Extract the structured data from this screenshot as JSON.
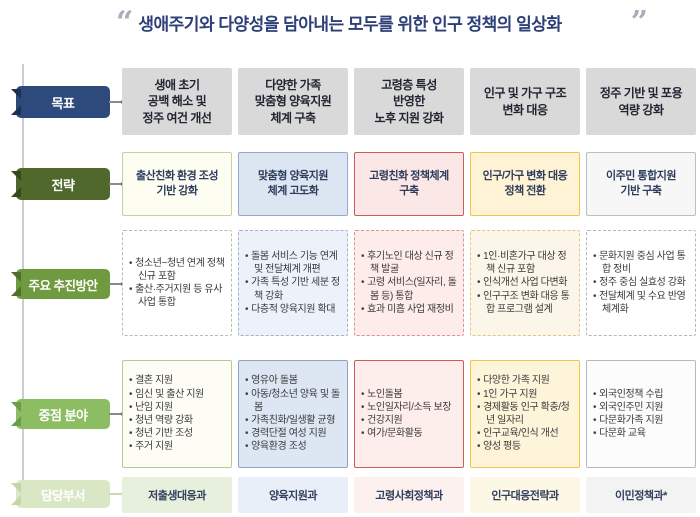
{
  "title": {
    "text": "생애주기와 다양성을 담아내는 모두를 위한 인구 정책의 일상화",
    "open_quote": "“",
    "close_quote": "”",
    "color": "#2d3f77"
  },
  "row_labels": [
    {
      "id": "goal",
      "label": "목표",
      "theme": {
        "bg": "#2e4a7d",
        "fold": "#1d3152"
      }
    },
    {
      "id": "strategy",
      "label": "전략",
      "theme": {
        "bg": "#50682c",
        "fold": "#36481d"
      }
    },
    {
      "id": "plans",
      "label": "주요 추진방안",
      "theme": {
        "bg": "#6f9a3f",
        "fold": "#4f7029"
      }
    },
    {
      "id": "focus",
      "label": "중점 분야",
      "theme": {
        "bg": "#8cbd63",
        "fold": "#6b9c46"
      }
    },
    {
      "id": "dept",
      "label": "담당부서",
      "theme": {
        "bg": "#d9e7c4",
        "fold": "#c2d6a6"
      }
    }
  ],
  "goal_theme": {
    "bg": "#d9d9d9"
  },
  "columns": [
    {
      "goal": "생애 초기\n공백 해소 및\n정주 여건 개선",
      "strategy": "출산친화 환경 조성\n기반 강화",
      "plans": [
        "청소년~청년 연계 정책 신규 포함",
        "출산·주거지원 등 유사 사업 통합"
      ],
      "focus": [
        "결혼 지원",
        "임신 및 출산 지원",
        "난임 지원",
        "청년 역량 강화",
        "청년 기반 조성",
        "주거 지원"
      ],
      "dept": "저출생대응과",
      "theme": {
        "strategy": {
          "bg": "#fdfdf2",
          "border": "#c3d3a4"
        },
        "plans": {
          "bg": "#ffffff",
          "border": "#b3bfa6"
        },
        "focus": {
          "bg": "#fdfdf6",
          "border": "#b5c992"
        },
        "dept": {
          "bg": "#e7f0dc"
        }
      }
    },
    {
      "goal": "다양한 가족\n맞춤형 양육지원\n체계 구축",
      "strategy": "맞춤형 양육지원\n체계 고도화",
      "plans": [
        "돌봄 서비스 기능 연계 및 전달체계 개편",
        "가족 특성 기반 세분 정책 강화",
        "다층적 양육지원 확대"
      ],
      "focus": [
        "영유아 돌봄",
        "아동/청소년 양육 및 돌봄",
        "가족친화/일생활 균형",
        "경력단절 여성 지원",
        "양육환경 조성"
      ],
      "dept": "양육지원과",
      "theme": {
        "strategy": {
          "bg": "#dce6f3",
          "border": "#94a9cc"
        },
        "plans": {
          "bg": "#edf2fa",
          "border": "#9fb3d1"
        },
        "focus": {
          "bg": "#dde7f4",
          "border": "#8da3c4"
        },
        "dept": {
          "bg": "#e9eff8"
        }
      }
    },
    {
      "goal": "고령층 특성\n반영한\n노후 지원 강화",
      "strategy": "고령친화 정책체계\n구축",
      "plans": [
        "후기노인 대상 신규 정책 발굴",
        "고령 서비스(일자리, 돌봄 등) 통합",
        "효과 미흡 사업 재정비"
      ],
      "focus": [
        "노인돌봄",
        "노인일자리/소득 보장",
        "건강지원",
        "여가/문화활동"
      ],
      "dept": "고령사회정책과",
      "theme": {
        "strategy": {
          "bg": "#fbe7e5",
          "border": "#cd5c55"
        },
        "plans": {
          "bg": "#fdecea",
          "border": "#d99590"
        },
        "focus": {
          "bg": "#fdeeec",
          "border": "#cd5c55"
        },
        "dept": {
          "bg": "#fdf1f0"
        }
      }
    },
    {
      "goal": "인구 및 가구 구조\n변화 대응",
      "strategy": "인구/가구 변화 대응\n정책 전환",
      "plans": [
        "1인·비혼가구 대상 정책 신규 포함",
        "인식개선 사업 다변화",
        "인구구조 변화 대응 통합 프로그램 설계"
      ],
      "focus": [
        "다양한 가족 지원",
        "1인 가구 지원",
        "경제활동 인구 확충/청년 일자리",
        "인구교육/인식 개선",
        "양성 평등"
      ],
      "dept": "인구대응전략과",
      "theme": {
        "strategy": {
          "bg": "#fff3d6",
          "border": "#f2c643"
        },
        "plans": {
          "bg": "#fbf6e9",
          "border": "#e3c878"
        },
        "focus": {
          "bg": "#fdf4da",
          "border": "#f2c643"
        },
        "dept": {
          "bg": "#fdf7e6"
        }
      }
    },
    {
      "goal": "정주 기반 및 포용\n역량 강화",
      "strategy": "이주민 통합지원\n기반 구축",
      "plans": [
        "문화지원 중심 사업 통합 정비",
        "정주 중심 실효성 강화",
        "전달체계 및 수요 반영 체계화"
      ],
      "focus": [
        "외국인정책 수립",
        "외국인주민 지원",
        "다문화가족 지원",
        "다문화 교육"
      ],
      "dept": "이민정책과*",
      "theme": {
        "strategy": {
          "bg": "#f7f7f7",
          "border": "#bfbfbf"
        },
        "plans": {
          "bg": "#ffffff",
          "border": "#b7b7b7"
        },
        "focus": {
          "bg": "#fcfcfc",
          "border": "#b9b9b9"
        },
        "dept": {
          "bg": "#f3f3f3"
        }
      }
    }
  ]
}
